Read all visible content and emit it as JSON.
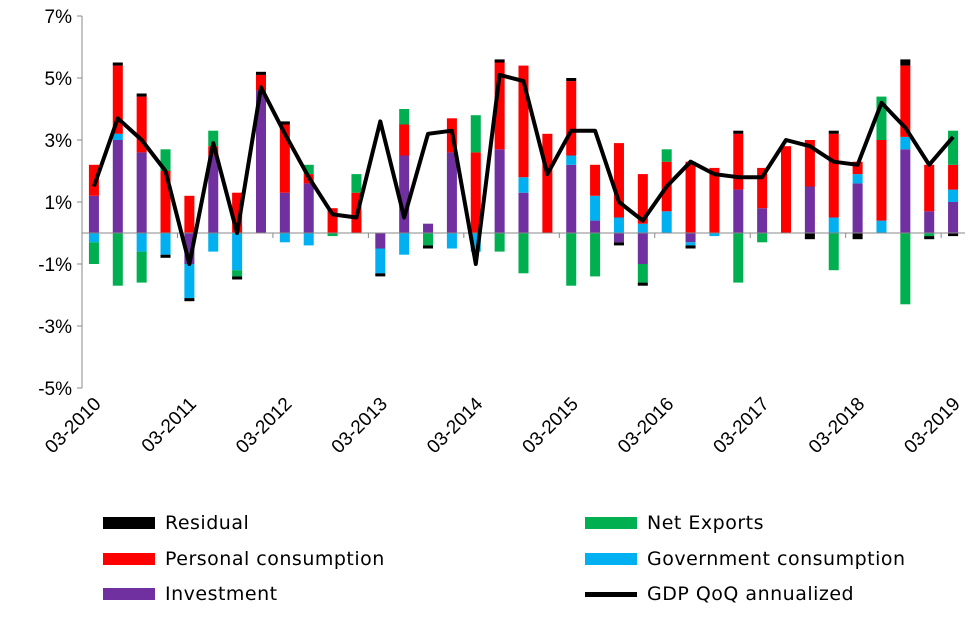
{
  "chart_data": {
    "type": "bar",
    "stacked": true,
    "y_tick_labels": [
      "7%",
      "5%",
      "3%",
      "1%",
      "-1%",
      "-3%",
      "-5%"
    ],
    "y_ticks": [
      7,
      5,
      3,
      1,
      -1,
      -3,
      -5
    ],
    "ylim": [
      -5,
      7
    ],
    "x_tick_labels": [
      "03-2010",
      "03-2011",
      "03-2012",
      "03-2013",
      "03-2014",
      "03-2015",
      "03-2016",
      "03-2017",
      "03-2018",
      "03-2019"
    ],
    "grid": false,
    "legend_position": "bottom",
    "colors": {
      "Investment": "#7030A0",
      "Government consumption": "#00B0F0",
      "Personal consumption": "#FF0000",
      "Net Exports": "#00B050",
      "Residual": "#000000",
      "GDP QoQ annualized": "#000000"
    },
    "legend": [
      "Residual",
      "Net Exports",
      "Personal consumption",
      "Government consumption",
      "Investment",
      "GDP QoQ annualized"
    ],
    "categories": [
      "Q1 2010",
      "Q2 2010",
      "Q3 2010",
      "Q4 2010",
      "Q1 2011",
      "Q2 2011",
      "Q3 2011",
      "Q4 2011",
      "Q1 2012",
      "Q2 2012",
      "Q3 2012",
      "Q4 2012",
      "Q1 2013",
      "Q2 2013",
      "Q3 2013",
      "Q4 2013",
      "Q1 2014",
      "Q2 2014",
      "Q3 2014",
      "Q4 2014",
      "Q1 2015",
      "Q2 2015",
      "Q3 2015",
      "Q4 2015",
      "Q1 2016",
      "Q2 2016",
      "Q3 2016",
      "Q4 2016",
      "Q1 2017",
      "Q2 2017",
      "Q3 2017",
      "Q4 2017",
      "Q1 2018",
      "Q2 2018",
      "Q3 2018",
      "Q4 2018",
      "Q1 2019"
    ],
    "series": [
      {
        "name": "Investment",
        "kind": "bar",
        "values": [
          1.2,
          3.0,
          2.6,
          0.0,
          -1.0,
          2.5,
          0.0,
          4.6,
          1.3,
          1.6,
          0.0,
          0.0,
          -0.5,
          2.5,
          0.3,
          2.6,
          0.0,
          2.7,
          1.3,
          0.0,
          2.2,
          0.4,
          -0.3,
          -1.0,
          0.0,
          -0.3,
          0.0,
          1.4,
          0.8,
          0.0,
          1.5,
          0.0,
          1.6,
          0.0,
          2.7,
          0.7,
          1.0
        ]
      },
      {
        "name": "Government consumption",
        "kind": "bar",
        "values": [
          -0.3,
          0.2,
          -0.6,
          -0.7,
          -1.1,
          -0.6,
          -1.2,
          0.0,
          -0.3,
          -0.4,
          0.0,
          0.0,
          -0.8,
          -0.7,
          0.0,
          -0.5,
          -0.6,
          0.0,
          0.5,
          0.0,
          0.3,
          0.8,
          0.5,
          0.3,
          0.7,
          -0.1,
          -0.1,
          0.0,
          0.0,
          0.0,
          0.0,
          0.5,
          0.3,
          0.4,
          0.4,
          0.0,
          0.4
        ]
      },
      {
        "name": "Personal consumption",
        "kind": "bar",
        "values": [
          1.0,
          2.2,
          1.8,
          2.0,
          1.2,
          0.3,
          1.3,
          0.5,
          2.2,
          0.3,
          0.8,
          1.3,
          0.0,
          1.0,
          0.0,
          1.1,
          2.6,
          2.8,
          3.6,
          3.2,
          2.4,
          1.0,
          2.4,
          1.6,
          1.6,
          2.3,
          2.1,
          1.8,
          1.3,
          2.8,
          1.5,
          2.7,
          0.4,
          2.6,
          2.3,
          1.5,
          0.8
        ]
      },
      {
        "name": "Net Exports",
        "kind": "bar",
        "values": [
          -0.7,
          -1.7,
          -1.0,
          0.7,
          0.0,
          0.5,
          -0.2,
          0.0,
          0.0,
          0.3,
          -0.1,
          0.6,
          0.0,
          0.5,
          -0.4,
          0.0,
          1.2,
          -0.6,
          -1.3,
          0.0,
          -1.7,
          -1.4,
          0.0,
          -0.6,
          0.4,
          0.0,
          0.0,
          -1.6,
          -0.3,
          0.0,
          0.0,
          -1.2,
          0.0,
          1.4,
          -2.3,
          -0.1,
          1.1
        ]
      },
      {
        "name": "Residual",
        "kind": "bar",
        "values": [
          0.0,
          0.1,
          0.1,
          -0.1,
          -0.1,
          0.0,
          -0.1,
          0.1,
          0.1,
          0.0,
          0.0,
          0.0,
          -0.1,
          0.0,
          -0.1,
          0.0,
          0.0,
          0.1,
          0.0,
          0.0,
          0.1,
          0.0,
          -0.1,
          -0.1,
          0.0,
          -0.1,
          0.0,
          0.1,
          0.0,
          0.0,
          -0.2,
          0.1,
          -0.2,
          0.0,
          0.2,
          -0.1,
          -0.1
        ]
      },
      {
        "name": "GDP QoQ annualized",
        "kind": "line",
        "values": [
          1.5,
          3.7,
          3.0,
          2.0,
          -1.0,
          2.9,
          0.0,
          4.7,
          3.2,
          1.8,
          0.6,
          0.5,
          3.6,
          0.5,
          3.2,
          3.3,
          -1.0,
          5.1,
          4.9,
          1.9,
          3.3,
          3.3,
          1.0,
          0.4,
          1.5,
          2.3,
          1.9,
          1.8,
          1.8,
          3.0,
          2.8,
          2.3,
          2.2,
          4.2,
          3.4,
          2.2,
          3.1
        ]
      }
    ]
  }
}
